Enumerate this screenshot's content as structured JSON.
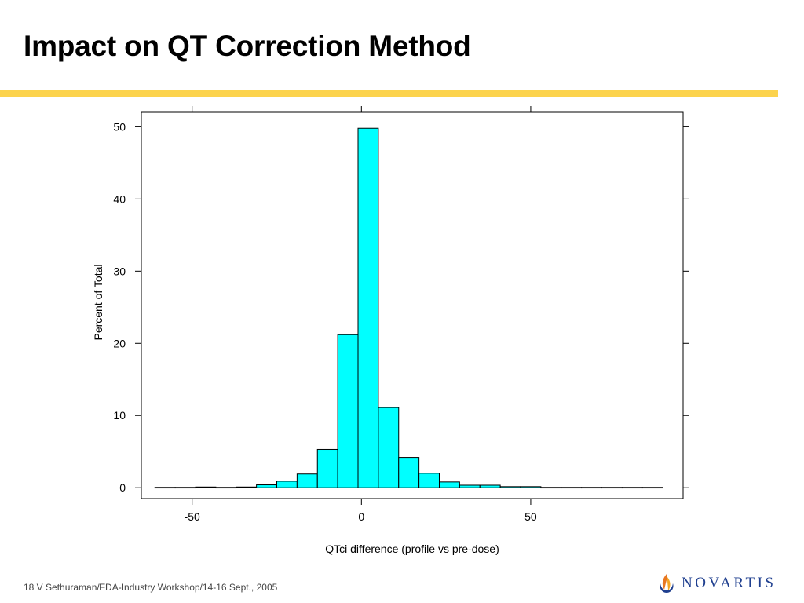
{
  "slide": {
    "title": "Impact on QT Correction Method",
    "footer": "18 V Sethuraman/FDA-Industry Workshop/14-16 Sept., 2005",
    "logo_text": "NOVARTIS"
  },
  "colors": {
    "title_rule": "#fcd34d",
    "bar_fill": "#00ffff",
    "bar_stroke": "#000000",
    "logo_text": "#1f3f8f",
    "logo_mark_orange": "#e87722"
  },
  "chart_data": {
    "type": "bar",
    "title": "",
    "xlabel": "QTci difference (profile vs pre-dose)",
    "ylabel": "Percent of Total",
    "xlim": [
      -65,
      95
    ],
    "ylim": [
      -1.5,
      52
    ],
    "xticks": [
      -50,
      0,
      50
    ],
    "xtick_labels": [
      "-50",
      "0",
      "50"
    ],
    "yticks": [
      0,
      10,
      20,
      30,
      40,
      50
    ],
    "ytick_labels": [
      "0",
      "10",
      "20",
      "30",
      "40",
      "50"
    ],
    "grid": false,
    "bin_width": 6,
    "bin_starts": [
      -61,
      -55,
      -49,
      -43,
      -37,
      -31,
      -25,
      -19,
      -13,
      -7,
      -1,
      5,
      11,
      17,
      23,
      29,
      35,
      41,
      47,
      53,
      59,
      65,
      71,
      77,
      83
    ],
    "values": [
      0.05,
      0.05,
      0.1,
      0.05,
      0.1,
      0.4,
      0.9,
      1.9,
      5.3,
      21.2,
      49.8,
      11.1,
      4.2,
      2.0,
      0.8,
      0.35,
      0.35,
      0.15,
      0.15,
      0.05,
      0.05,
      0.05,
      0.05,
      0.05,
      0.05
    ]
  }
}
